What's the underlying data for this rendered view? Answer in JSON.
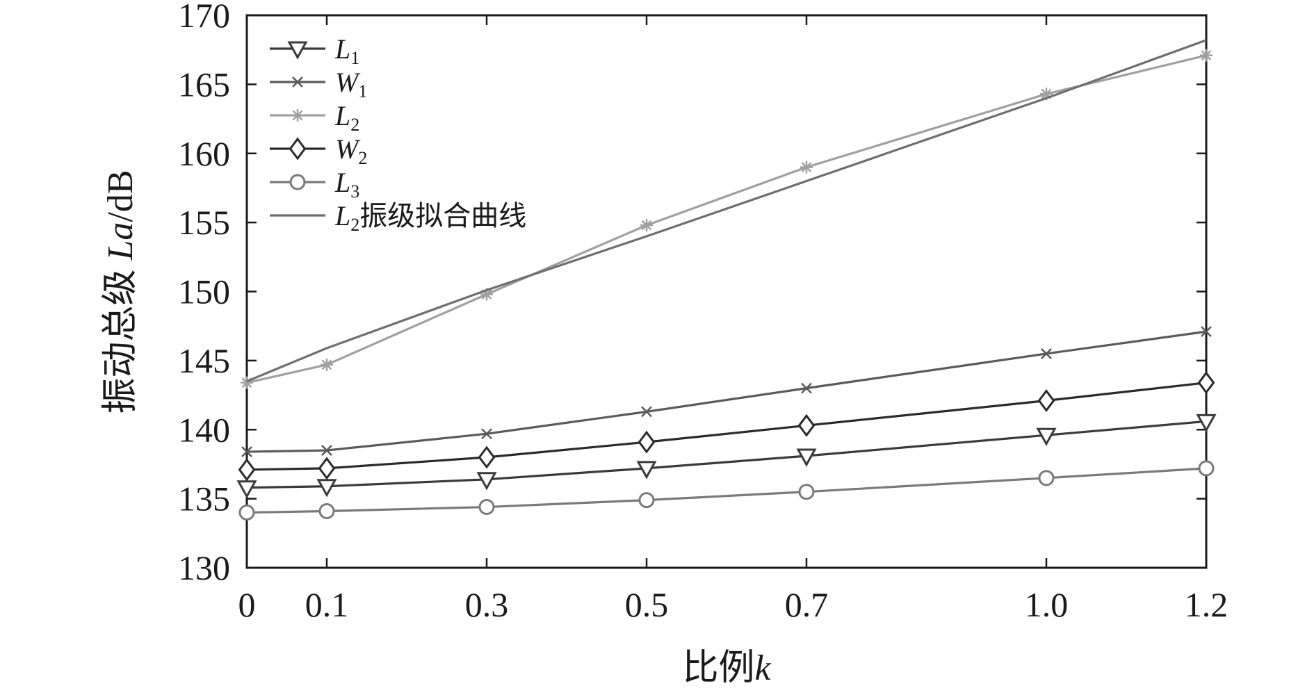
{
  "chart_data": {
    "type": "line",
    "xlabel": "比例",
    "xlabel_var": "k",
    "ylabel": "振动总级",
    "ylabel_var": "La",
    "ylabel_unit": "/dB",
    "x": [
      0,
      0.1,
      0.3,
      0.5,
      0.7,
      1.0,
      1.2
    ],
    "x_tick_labels": [
      "0",
      "0.1",
      "0.3",
      "0.5",
      "0.7",
      "1.0",
      "1.2"
    ],
    "y_ticks": [
      130,
      135,
      140,
      145,
      150,
      155,
      160,
      165,
      170
    ],
    "ylim": [
      130,
      170
    ],
    "grid": false,
    "legend_position": "top-left",
    "series": [
      {
        "name": "L",
        "sub": "1",
        "marker": "triangle-down",
        "color": "#3a3a3a",
        "values": [
          135.8,
          135.9,
          136.4,
          137.2,
          138.1,
          139.6,
          140.6
        ]
      },
      {
        "name": "W",
        "sub": "1",
        "marker": "x",
        "color": "#5a5a5a",
        "values": [
          138.4,
          138.5,
          139.7,
          141.3,
          143.0,
          145.5,
          147.1
        ]
      },
      {
        "name": "L",
        "sub": "2",
        "marker": "asterisk",
        "color": "#a0a0a0",
        "values": [
          143.4,
          144.7,
          149.8,
          154.8,
          159.0,
          164.3,
          167.1
        ]
      },
      {
        "name": "W",
        "sub": "2",
        "marker": "diamond",
        "color": "#2a2a2a",
        "values": [
          137.1,
          137.2,
          138.0,
          139.1,
          140.3,
          142.1,
          143.4
        ]
      },
      {
        "name": "L",
        "sub": "3",
        "marker": "circle",
        "color": "#7a7a7a",
        "values": [
          134.0,
          134.1,
          134.4,
          134.9,
          135.5,
          136.5,
          137.2
        ]
      },
      {
        "name": "L",
        "sub": "2",
        "suffix": "振级拟合曲线",
        "marker": "none",
        "color": "#6e6e6e",
        "values": [
          143.5,
          145.9,
          150.1,
          154.0,
          158.0,
          164.0,
          168.2
        ]
      }
    ]
  }
}
